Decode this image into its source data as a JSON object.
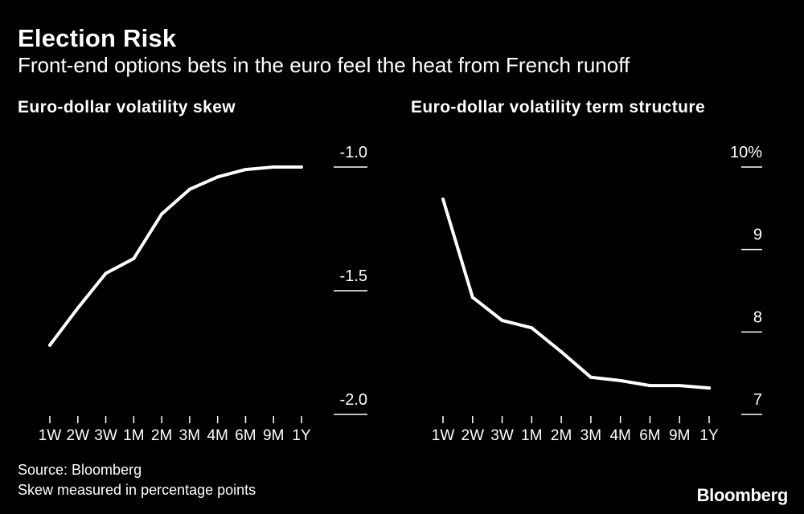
{
  "header": {
    "title": "Election Risk",
    "subtitle": "Front-end options bets in the euro feel the heat from French runoff"
  },
  "footer": {
    "source": "Source: Bloomberg",
    "note": "Skew measured in percentage points",
    "logo": "Bloomberg"
  },
  "chart_data": [
    {
      "type": "line",
      "title": "Euro-dollar volatility skew",
      "categories": [
        "1W",
        "2W",
        "3W",
        "1M",
        "2M",
        "3M",
        "4M",
        "6M",
        "9M",
        "1Y"
      ],
      "values": [
        -1.72,
        -1.57,
        -1.43,
        -1.37,
        -1.19,
        -1.09,
        -1.04,
        -1.01,
        -1.0,
        -1.0
      ],
      "ylim": [
        -2.0,
        -1.0
      ],
      "yticks": [
        -1.0,
        -1.5,
        -2.0
      ],
      "ytick_labels": [
        "-1.0",
        "-1.5",
        "-2.0"
      ],
      "color": "#ffffff"
    },
    {
      "type": "line",
      "title": "Euro-dollar volatility term structure",
      "categories": [
        "1W",
        "2W",
        "3W",
        "1M",
        "2M",
        "3M",
        "4M",
        "6M",
        "9M",
        "1Y"
      ],
      "values": [
        9.61,
        8.42,
        8.14,
        8.05,
        7.76,
        7.45,
        7.41,
        7.35,
        7.35,
        7.32
      ],
      "ylim": [
        7,
        10
      ],
      "yticks": [
        10,
        9,
        8,
        7
      ],
      "ytick_labels": [
        "10%",
        "9",
        "8",
        "7"
      ],
      "color": "#ffffff"
    }
  ]
}
